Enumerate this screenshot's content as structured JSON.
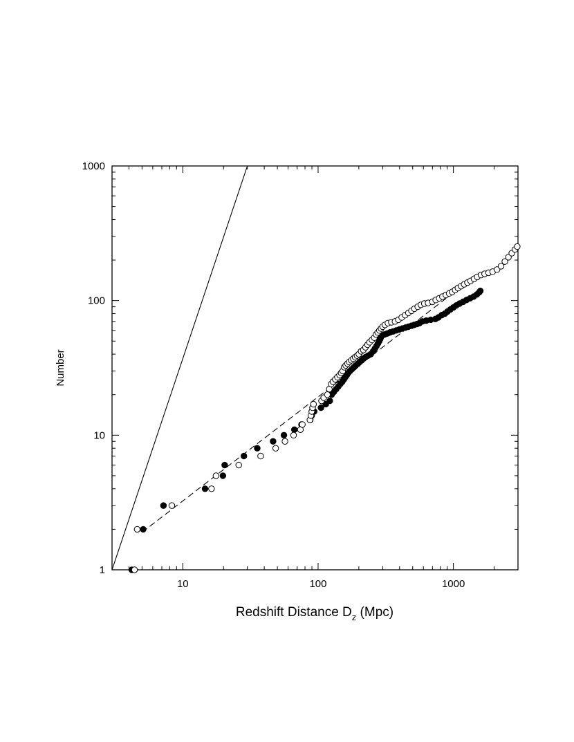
{
  "chart_data": {
    "type": "scatter",
    "title": "",
    "xlabel": "Redshift Distance D",
    "xlabel_sub": "z",
    "xlabel_unit": " (Mpc)",
    "ylabel": "Number",
    "x_scale": "log",
    "y_scale": "log",
    "xlim": [
      3,
      3000
    ],
    "ylim": [
      1,
      1000
    ],
    "x_tick_labels": [
      {
        "value": 10,
        "label": "10"
      },
      {
        "value": 100,
        "label": "100"
      },
      {
        "value": 1000,
        "label": "1000"
      }
    ],
    "y_tick_labels": [
      {
        "value": 1,
        "label": "1"
      },
      {
        "value": 10,
        "label": "10"
      },
      {
        "value": 100,
        "label": "100"
      },
      {
        "value": 1000,
        "label": "1000"
      }
    ],
    "grid": false,
    "legend": "none",
    "series": [
      {
        "marker": "filled-circle",
        "color": "#000000",
        "points": [
          [
            4.2,
            1
          ],
          [
            5.1,
            2
          ],
          [
            7.2,
            3
          ],
          [
            14.6,
            4
          ],
          [
            19.8,
            5
          ],
          [
            20.4,
            6
          ],
          [
            28.3,
            7
          ],
          [
            35.5,
            8
          ],
          [
            46.5,
            9
          ],
          [
            55.9,
            10
          ],
          [
            66.8,
            11
          ],
          [
            75.4,
            12
          ],
          [
            87.4,
            13
          ],
          [
            89.7,
            14
          ],
          [
            93.5,
            15
          ],
          [
            105,
            16
          ],
          [
            114,
            17
          ],
          [
            122,
            18
          ],
          [
            126,
            20
          ],
          [
            131,
            21
          ],
          [
            136,
            22
          ],
          [
            141,
            23
          ],
          [
            146,
            24
          ],
          [
            151,
            25
          ],
          [
            155,
            26
          ],
          [
            159,
            27
          ],
          [
            163,
            28
          ],
          [
            167,
            29
          ],
          [
            172,
            30
          ],
          [
            178,
            31
          ],
          [
            184,
            32
          ],
          [
            190,
            33
          ],
          [
            197,
            34
          ],
          [
            203,
            35
          ],
          [
            210,
            36
          ],
          [
            216,
            37
          ],
          [
            224,
            38
          ],
          [
            234,
            39
          ],
          [
            245,
            40
          ],
          [
            255,
            42
          ],
          [
            263,
            44
          ],
          [
            270,
            46
          ],
          [
            277,
            48
          ],
          [
            283,
            50
          ],
          [
            288,
            52
          ],
          [
            293,
            54
          ],
          [
            297,
            55
          ],
          [
            310,
            56
          ],
          [
            325,
            57
          ],
          [
            340,
            58
          ],
          [
            358,
            59
          ],
          [
            378,
            60
          ],
          [
            398,
            61
          ],
          [
            420,
            62
          ],
          [
            443,
            63
          ],
          [
            465,
            64
          ],
          [
            490,
            65
          ],
          [
            513,
            66
          ],
          [
            538,
            67
          ],
          [
            560,
            68
          ],
          [
            590,
            70
          ],
          [
            630,
            71
          ],
          [
            680,
            72
          ],
          [
            735,
            73
          ],
          [
            775,
            75
          ],
          [
            820,
            78
          ],
          [
            865,
            80
          ],
          [
            905,
            83
          ],
          [
            950,
            86
          ],
          [
            1000,
            89
          ],
          [
            1050,
            92
          ],
          [
            1110,
            95
          ],
          [
            1180,
            98
          ],
          [
            1250,
            101
          ],
          [
            1330,
            104
          ],
          [
            1410,
            107
          ],
          [
            1490,
            111
          ],
          [
            1550,
            115
          ],
          [
            1580,
            118
          ]
        ]
      },
      {
        "marker": "open-circle",
        "color": "#000000",
        "points": [
          [
            4.4,
            1
          ],
          [
            4.6,
            2
          ],
          [
            8.3,
            3
          ],
          [
            16.3,
            4
          ],
          [
            17.6,
            5
          ],
          [
            25.9,
            6
          ],
          [
            37.6,
            7
          ],
          [
            48.6,
            8
          ],
          [
            56.9,
            9
          ],
          [
            65.9,
            10
          ],
          [
            74,
            11
          ],
          [
            76.5,
            12
          ],
          [
            87,
            13
          ],
          [
            88.5,
            14
          ],
          [
            89.8,
            15
          ],
          [
            91,
            16
          ],
          [
            92.5,
            17
          ],
          [
            106,
            18
          ],
          [
            110,
            19
          ],
          [
            117,
            20
          ],
          [
            121,
            22
          ],
          [
            125,
            24
          ],
          [
            129,
            25
          ],
          [
            134,
            26
          ],
          [
            139,
            27
          ],
          [
            144,
            28
          ],
          [
            148,
            29
          ],
          [
            152,
            30
          ],
          [
            156,
            32
          ],
          [
            160,
            33
          ],
          [
            165,
            34
          ],
          [
            170,
            35
          ],
          [
            176,
            36
          ],
          [
            182,
            37
          ],
          [
            188,
            38
          ],
          [
            194,
            39
          ],
          [
            200,
            40
          ],
          [
            208,
            42
          ],
          [
            216,
            43
          ],
          [
            224,
            45
          ],
          [
            232,
            47
          ],
          [
            240,
            49
          ],
          [
            250,
            51
          ],
          [
            260,
            53
          ],
          [
            268,
            56
          ],
          [
            276,
            58
          ],
          [
            284,
            60
          ],
          [
            292,
            62
          ],
          [
            300,
            64
          ],
          [
            312,
            66
          ],
          [
            328,
            68
          ],
          [
            348,
            69
          ],
          [
            370,
            70
          ],
          [
            392,
            72
          ],
          [
            415,
            75
          ],
          [
            440,
            78
          ],
          [
            465,
            81
          ],
          [
            490,
            84
          ],
          [
            515,
            87
          ],
          [
            545,
            90
          ],
          [
            575,
            93
          ],
          [
            610,
            95
          ],
          [
            650,
            96
          ],
          [
            700,
            98
          ],
          [
            740,
            101
          ],
          [
            785,
            104
          ],
          [
            830,
            107
          ],
          [
            880,
            110
          ],
          [
            930,
            113
          ],
          [
            980,
            116
          ],
          [
            1030,
            120
          ],
          [
            1080,
            124
          ],
          [
            1140,
            128
          ],
          [
            1200,
            132
          ],
          [
            1270,
            136
          ],
          [
            1340,
            140
          ],
          [
            1420,
            145
          ],
          [
            1500,
            150
          ],
          [
            1600,
            155
          ],
          [
            1700,
            158
          ],
          [
            1820,
            161
          ],
          [
            1950,
            164
          ],
          [
            2100,
            170
          ],
          [
            2250,
            180
          ],
          [
            2400,
            195
          ],
          [
            2550,
            210
          ],
          [
            2700,
            225
          ],
          [
            2850,
            240
          ],
          [
            2960,
            252
          ]
        ]
      }
    ],
    "lines": [
      {
        "style": "solid",
        "from": [
          3,
          1
        ],
        "to": [
          30,
          1000
        ]
      },
      {
        "style": "dashed",
        "from": [
          5,
          1.9
        ],
        "to": [
          1300,
          140
        ]
      }
    ]
  }
}
